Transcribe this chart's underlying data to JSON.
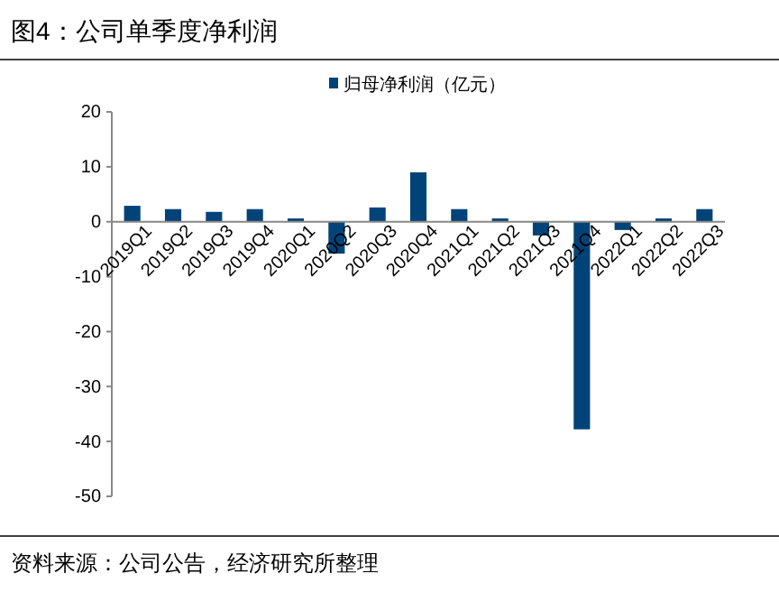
{
  "chart_data": {
    "type": "bar",
    "title": "图4：公司单季度净利润",
    "annotations": [
      "资料来源：公司公告，经济研究所整理"
    ],
    "categories": [
      "2019Q1",
      "2019Q2",
      "2019Q3",
      "2019Q4",
      "2020Q1",
      "2020Q2",
      "2020Q3",
      "2020Q4",
      "2021Q1",
      "2021Q2",
      "2021Q3",
      "2021Q4",
      "2022Q1",
      "2022Q2",
      "2022Q3"
    ],
    "series": [
      {
        "name": "归母净利润（亿元）",
        "color": "#004379",
        "values": [
          2.9,
          2.3,
          1.8,
          2.3,
          0.6,
          -5.8,
          2.6,
          9.0,
          2.3,
          0.6,
          -2.5,
          -37.8,
          -1.5,
          0.6,
          2.3
        ]
      }
    ],
    "ylim": [
      -50,
      20
    ],
    "yticks": [
      -50,
      -40,
      -30,
      -20,
      -10,
      0,
      10,
      20
    ],
    "legend": "top",
    "grid": false
  }
}
